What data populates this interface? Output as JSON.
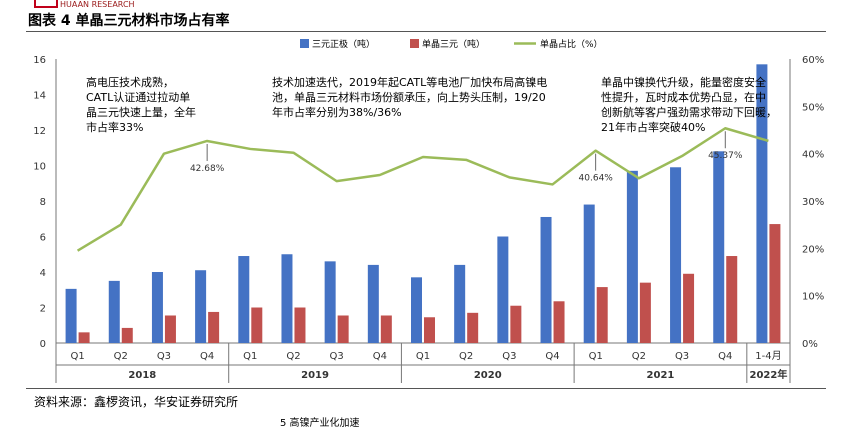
{
  "header": {
    "brand": "HUAAN RESEARCH",
    "title": "图表 4 单晶三元材料市场占有率"
  },
  "footer": {
    "source": "资料来源：鑫椤资讯，华安证券研究所",
    "next_title_fragment": "5  高镍产业化加速"
  },
  "chart_data": {
    "type": "bar+line",
    "categories": [
      "Q1",
      "Q2",
      "Q3",
      "Q4",
      "Q1",
      "Q2",
      "Q3",
      "Q4",
      "Q1",
      "Q2",
      "Q3",
      "Q4",
      "Q1",
      "Q2",
      "Q3",
      "Q4",
      "1-4月"
    ],
    "year_groups": [
      {
        "label": "2018",
        "count": 4
      },
      {
        "label": "2019",
        "count": 4
      },
      {
        "label": "2020",
        "count": 4
      },
      {
        "label": "2021",
        "count": 4
      },
      {
        "label": "2022年",
        "count": 1
      }
    ],
    "series": [
      {
        "name": "三元正极（吨）",
        "type": "bar",
        "axis": "left",
        "color": "#4472c4",
        "values": [
          3.05,
          3.5,
          4.0,
          4.1,
          4.9,
          5.0,
          4.6,
          4.4,
          3.7,
          4.4,
          6.0,
          7.1,
          7.8,
          9.7,
          9.9,
          10.8,
          15.7
        ]
      },
      {
        "name": "单晶三元（吨）",
        "type": "bar",
        "axis": "left",
        "color": "#c0504d",
        "values": [
          0.6,
          0.85,
          1.55,
          1.75,
          2.0,
          2.0,
          1.55,
          1.55,
          1.45,
          1.7,
          2.1,
          2.35,
          3.15,
          3.4,
          3.9,
          4.9,
          6.7
        ]
      },
      {
        "name": "单晶占比（%）",
        "type": "line",
        "axis": "right",
        "color": "#9bbb59",
        "values": [
          19.5,
          25.0,
          40.0,
          42.68,
          41.0,
          40.2,
          34.2,
          35.5,
          39.3,
          38.7,
          35.0,
          33.5,
          40.64,
          34.8,
          39.5,
          45.37,
          42.7
        ]
      }
    ],
    "ylim_left": [
      0,
      16
    ],
    "yticks_left": [
      "0",
      "2",
      "4",
      "6",
      "8",
      "10",
      "12",
      "14",
      "16"
    ],
    "ylim_right": [
      0,
      60
    ],
    "yticks_right": [
      "0%",
      "10%",
      "20%",
      "30%",
      "40%",
      "50%",
      "60%"
    ],
    "point_labels": [
      {
        "index": 3,
        "text": "42.68%"
      },
      {
        "index": 12,
        "text": "40.64%"
      },
      {
        "index": 15,
        "text": "45.37%"
      }
    ],
    "annotations": [
      {
        "lines": [
          "高电压技术成熟，",
          "CATL认证通过拉动单",
          "晶三元快速上量，全年",
          "市占率33%"
        ]
      },
      {
        "lines": [
          "技术加速迭代，2019年起CATL等电池厂加快布局高镍电",
          "池，单晶三元材料市场份额承压，向上势头压制，19/20",
          "年市占率分别为38%/36%"
        ]
      },
      {
        "lines": [
          "单晶中镍换代升级，能量密度安全",
          "性提升，瓦时成本优势凸显，在中",
          "创新航等客户强劲需求带动下回暖，",
          "21年市占率突破40%"
        ]
      }
    ]
  }
}
